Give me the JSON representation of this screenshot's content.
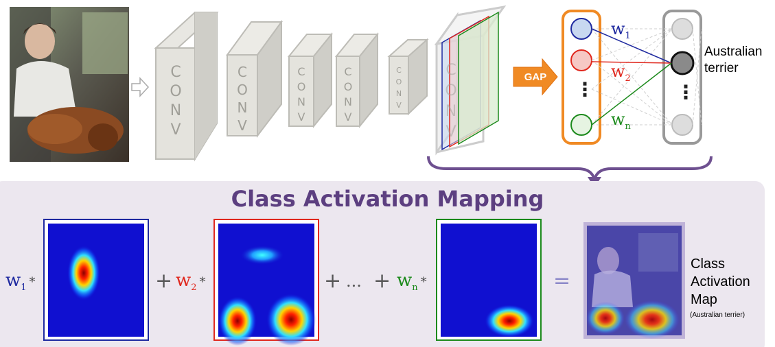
{
  "title": "Class Activation Mapping",
  "gap_label": "GAP",
  "conv_letters": [
    "C",
    "O",
    "N",
    "V"
  ],
  "weights": {
    "w1": {
      "base": "w",
      "sub": "1",
      "color": "#1f2aa0"
    },
    "w2": {
      "base": "w",
      "sub": "2",
      "color": "#e0281e"
    },
    "wn": {
      "base": "w",
      "sub": "n",
      "color": "#1c8a1c"
    }
  },
  "class_label": {
    "line1": "Australian",
    "line2": "terrier"
  },
  "cam_label": {
    "line1": "Class",
    "line2": "Activation",
    "line3": "Map",
    "sub": "(Australian terrier)"
  },
  "operators": {
    "plus": "+",
    "ellipsis": "...",
    "times": "*",
    "equals": "=",
    "vdots": "⋮"
  },
  "colors": {
    "purple": "#6e5090",
    "panel": "#ece7ef",
    "orange": "#f08a24",
    "blue": "#1f2aa0",
    "red": "#e0281e",
    "green": "#1c8a1c",
    "heat_bg": "#1010d0"
  }
}
